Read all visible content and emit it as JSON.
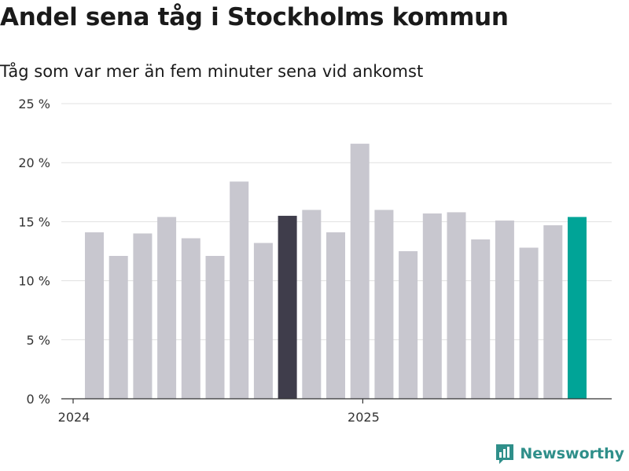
{
  "title": "Andel sena tåg i Stockholms kommun",
  "subtitle": "Tåg som var mer än fem minuter sena vid ankomst",
  "brand": {
    "name": "Newsworthy"
  },
  "colors": {
    "bar_default": "#c8c7cf",
    "bar_highlight_dark": "#3f3d4b",
    "bar_highlight_accent": "#00a497",
    "gridline": "#e0e0e0",
    "axis": "#333333",
    "brand": "#2f8f8a"
  },
  "chart_data": {
    "type": "bar",
    "title": "Andel sena tåg i Stockholms kommun",
    "subtitle": "Tåg som var mer än fem minuter sena vid ankomst",
    "xlabel": "",
    "ylabel": "",
    "ylim": [
      0,
      25
    ],
    "yticks": [
      0,
      5,
      10,
      15,
      20,
      25
    ],
    "ytick_labels": [
      "0 %",
      "5 %",
      "10 %",
      "15 %",
      "20 %",
      "25 %"
    ],
    "grid": true,
    "x_tick_labels": [
      {
        "label": "2024",
        "index": 0
      },
      {
        "label": "2025",
        "index": 12
      }
    ],
    "values": [
      14.1,
      12.1,
      14.0,
      15.4,
      13.6,
      12.1,
      18.4,
      13.2,
      15.5,
      16.0,
      14.1,
      21.6,
      16.0,
      12.5,
      15.7,
      15.8,
      13.5,
      15.1,
      12.8,
      14.7,
      15.4
    ],
    "highlight": [
      {
        "index": 8,
        "color": "#3f3d4b"
      },
      {
        "index": 20,
        "color": "#00a497"
      }
    ]
  }
}
